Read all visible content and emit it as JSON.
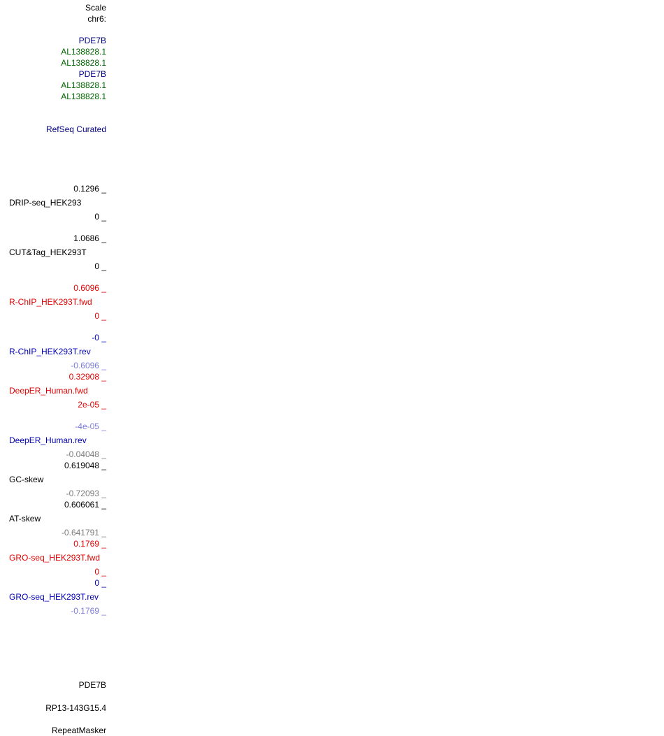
{
  "header": {
    "scale": "Scale",
    "chrom": "chr6:"
  },
  "gene_labels": [
    "PDE7B",
    "AL138828.1",
    "AL138828.1",
    "PDE7B",
    "AL138828.1",
    "AL138828.1"
  ],
  "refseq_track": "RefSeq Curated",
  "tracks": {
    "drip": {
      "max": "0.1296 _",
      "name": "DRIP-seq_HEK293",
      "min": "0 _"
    },
    "cuttag": {
      "max": "1.0686 _",
      "name": "CUT&Tag_HEK293T",
      "min": "0 _"
    },
    "rchip_fwd": {
      "max": "0.6096 _",
      "name": "R-ChIP_HEK293T.fwd",
      "min": "0 _"
    },
    "rchip_rev": {
      "max": "-0 _",
      "name": "R-ChIP_HEK293T.rev",
      "min": "-0.6096 _"
    },
    "deeper_fwd": {
      "max": "0.32908 _",
      "name": "DeepER_Human.fwd",
      "min": "2e-05 _"
    },
    "deeper_rev": {
      "max": "-4e-05 _",
      "name": "DeepER_Human.rev",
      "min": "-0.04048 _"
    },
    "gc_skew": {
      "max": "0.619048 _",
      "name": "GC-skew",
      "min": "-0.72093 _"
    },
    "at_skew": {
      "max": "0.606061 _",
      "name": "AT-skew",
      "min": "-0.641791 _"
    },
    "gro_fwd": {
      "max": "0.1769 _",
      "name": "GRO-seq_HEK293T.fwd",
      "min": "0 _"
    },
    "gro_rev": {
      "max": "0 _",
      "name": "GRO-seq_HEK293T.rev",
      "min": "-0.1769 _"
    }
  },
  "bottom_labels": {
    "pde7b": "PDE7B",
    "rp13": "RP13-143G15.4",
    "repeatmasker": "RepeatMasker"
  },
  "colors": {
    "black": "#000000",
    "navy": "#000080",
    "green": "#006400",
    "red": "#e00000",
    "blue": "#0000b4",
    "light_blue": "#7b7bdd",
    "gray": "#7a7a7a"
  }
}
